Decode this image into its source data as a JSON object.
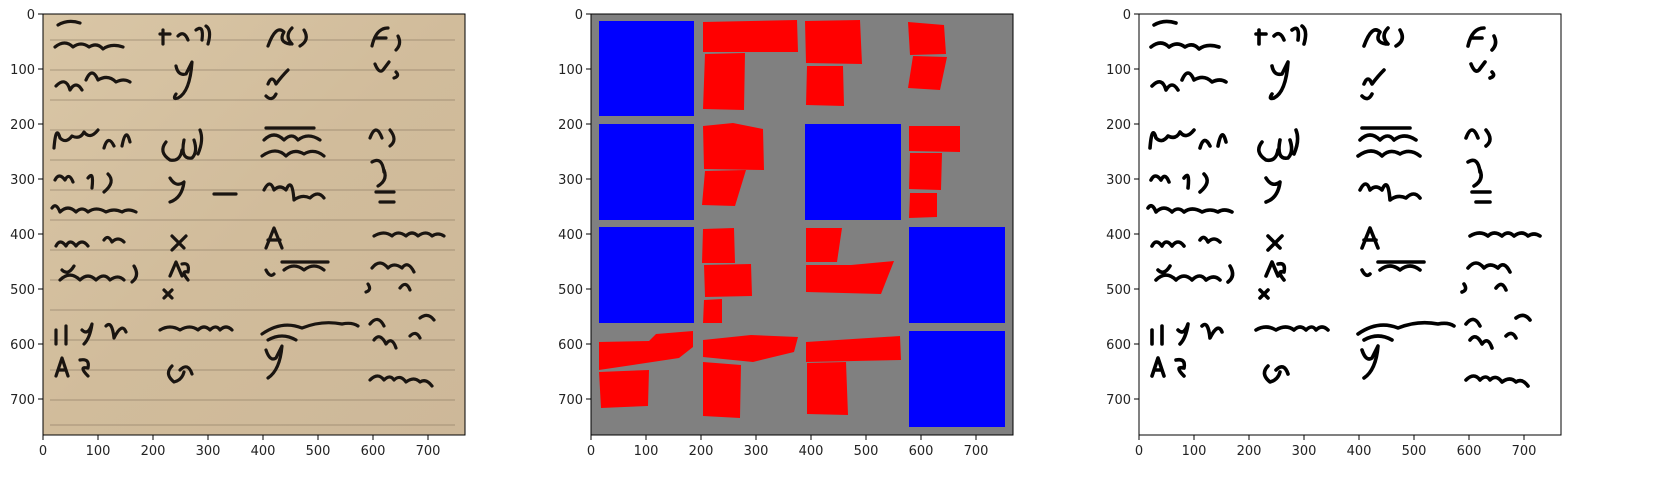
{
  "figure": {
    "panels": [
      {
        "id": "manuscript",
        "x_ticks": [
          "0",
          "100",
          "200",
          "300",
          "400",
          "500",
          "600",
          "700"
        ],
        "y_ticks": [
          "0",
          "100",
          "200",
          "300",
          "400",
          "500",
          "600",
          "700"
        ]
      },
      {
        "id": "segmentation",
        "x_ticks": [
          "0",
          "100",
          "200",
          "300",
          "400",
          "500",
          "600",
          "700"
        ],
        "y_ticks": [
          "0",
          "100",
          "200",
          "300",
          "400",
          "500",
          "600",
          "700"
        ]
      },
      {
        "id": "binarized",
        "x_ticks": [
          "0",
          "100",
          "200",
          "300",
          "400",
          "500",
          "600",
          "700"
        ],
        "y_ticks": [
          "0",
          "100",
          "200",
          "300",
          "400",
          "500",
          "600",
          "700"
        ]
      }
    ],
    "colors": {
      "parchment": "#d3bf9f",
      "text_region": "#ff0000",
      "blank_region": "#0000ff",
      "background": "#808080",
      "ink": "#1a1511"
    }
  }
}
